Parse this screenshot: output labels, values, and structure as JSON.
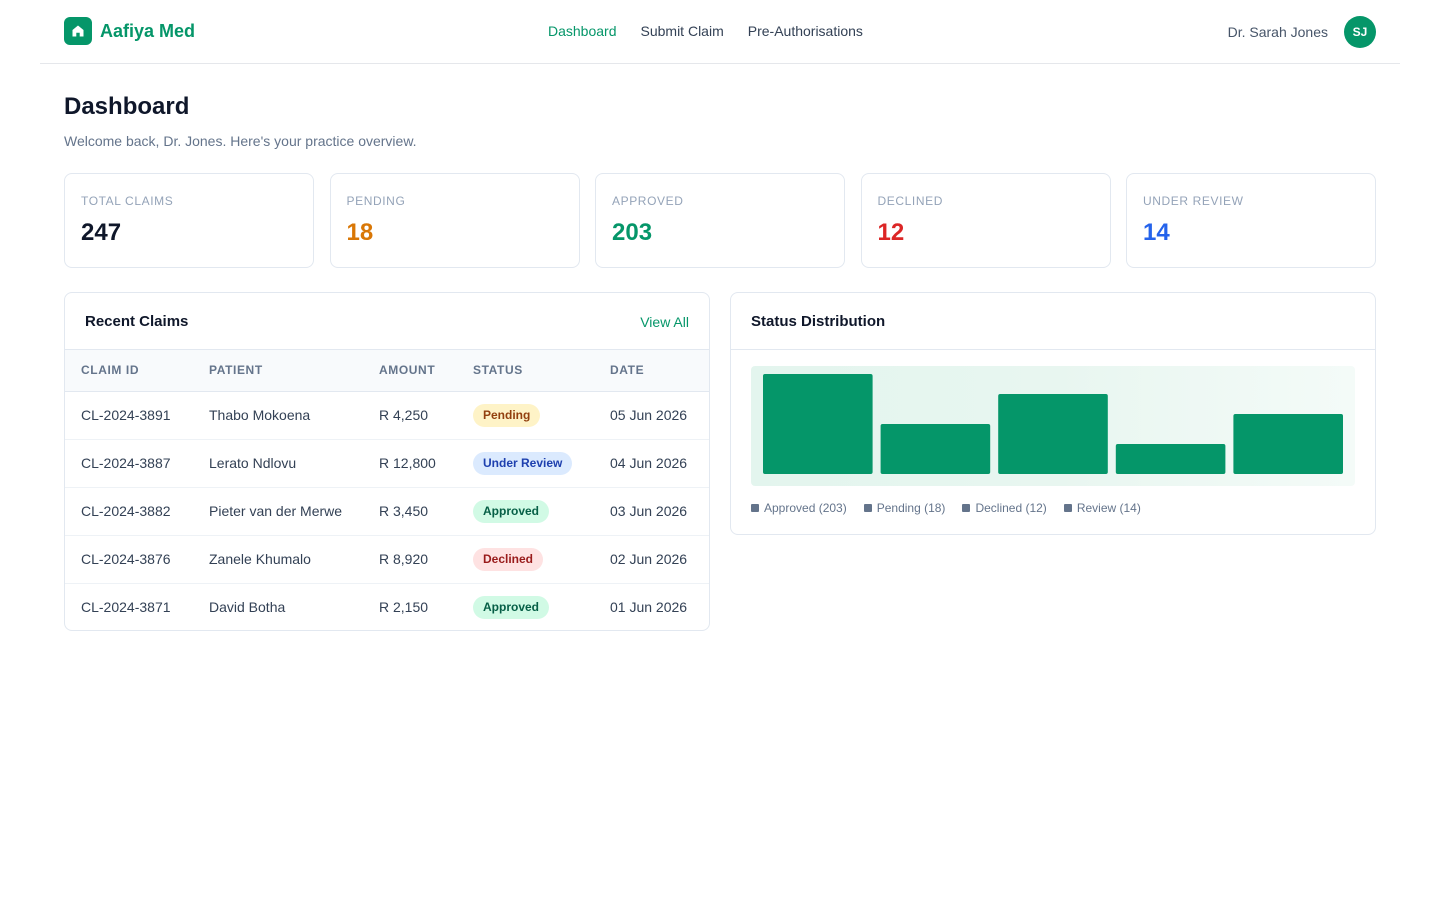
{
  "app": {
    "brand": "Aafiya Med",
    "accent_color": "#059669"
  },
  "nav": {
    "items": [
      {
        "label": "Dashboard",
        "active": true
      },
      {
        "label": "Submit Claim",
        "active": false
      },
      {
        "label": "Pre-Authorisations",
        "active": false
      }
    ]
  },
  "user": {
    "name": "Dr. Sarah Jones",
    "initials": "SJ"
  },
  "page": {
    "title": "Dashboard",
    "subtitle": "Welcome back, Dr. Jones. Here's your practice overview."
  },
  "stats": [
    {
      "label": "TOTAL CLAIMS",
      "value": "247",
      "color": "#0f172a"
    },
    {
      "label": "PENDING",
      "value": "18",
      "color": "#d97706"
    },
    {
      "label": "APPROVED",
      "value": "203",
      "color": "#059669"
    },
    {
      "label": "DECLINED",
      "value": "12",
      "color": "#dc2626"
    },
    {
      "label": "UNDER REVIEW",
      "value": "14",
      "color": "#2563eb"
    }
  ],
  "recent_claims": {
    "title": "Recent Claims",
    "view_all": "View All",
    "columns": [
      "CLAIM ID",
      "PATIENT",
      "AMOUNT",
      "STATUS",
      "DATE"
    ],
    "rows": [
      {
        "id": "CL-2024-3891",
        "patient": "Thabo Mokoena",
        "amount": "R 4,250",
        "status": "Pending",
        "status_key": "pending",
        "date": "05 Jun 2026"
      },
      {
        "id": "CL-2024-3887",
        "patient": "Lerato Ndlovu",
        "amount": "R 12,800",
        "status": "Under Review",
        "status_key": "review",
        "date": "04 Jun 2026"
      },
      {
        "id": "CL-2024-3882",
        "patient": "Pieter van der Merwe",
        "amount": "R 3,450",
        "status": "Approved",
        "status_key": "approved",
        "date": "03 Jun 2026"
      },
      {
        "id": "CL-2024-3876",
        "patient": "Zanele Khumalo",
        "amount": "R 8,920",
        "status": "Declined",
        "status_key": "declined",
        "date": "02 Jun 2026"
      },
      {
        "id": "CL-2024-3871",
        "patient": "David Botha",
        "amount": "R 2,150",
        "status": "Approved",
        "status_key": "approved",
        "date": "01 Jun 2026"
      }
    ]
  },
  "status_distribution": {
    "title": "Status Distribution",
    "bar_color": "#059669",
    "bars": [
      {
        "level": 1.0
      },
      {
        "level": 0.5
      },
      {
        "level": 0.8
      },
      {
        "level": 0.3
      },
      {
        "level": 0.6
      }
    ],
    "legend": [
      "Approved (203)",
      "Pending (18)",
      "Declined (12)",
      "Review (14)"
    ]
  }
}
